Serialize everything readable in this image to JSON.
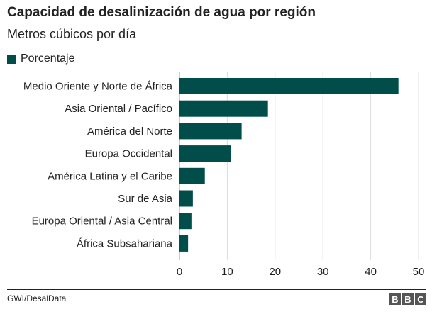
{
  "title": "Capacidad de desalinización de agua por región",
  "subtitle": "Metros cúbicos por día",
  "source": "GWI/DesalData",
  "logo_text": "BBC",
  "colors": {
    "bar": "#004d4a",
    "grid": "#dddddd",
    "text": "#222222"
  },
  "chart_data": {
    "type": "bar",
    "orientation": "horizontal",
    "categories": [
      "Medio Oriente y Norte de África",
      "Asia Oriental / Pacífico",
      "América del Norte",
      "Europa Occidental",
      "América Latina y el Caribe",
      "Sur de Asia",
      "Europa Oriental / Asia Central",
      "África Subsahariana"
    ],
    "series": [
      {
        "name": "Porcentaje",
        "values": [
          45.8,
          18.5,
          13.0,
          10.7,
          5.3,
          2.8,
          2.5,
          1.8
        ]
      }
    ],
    "xlim": [
      0,
      50
    ],
    "xticks": [
      0,
      10,
      20,
      30,
      40,
      50
    ],
    "grid": true,
    "legend": "top-left"
  }
}
